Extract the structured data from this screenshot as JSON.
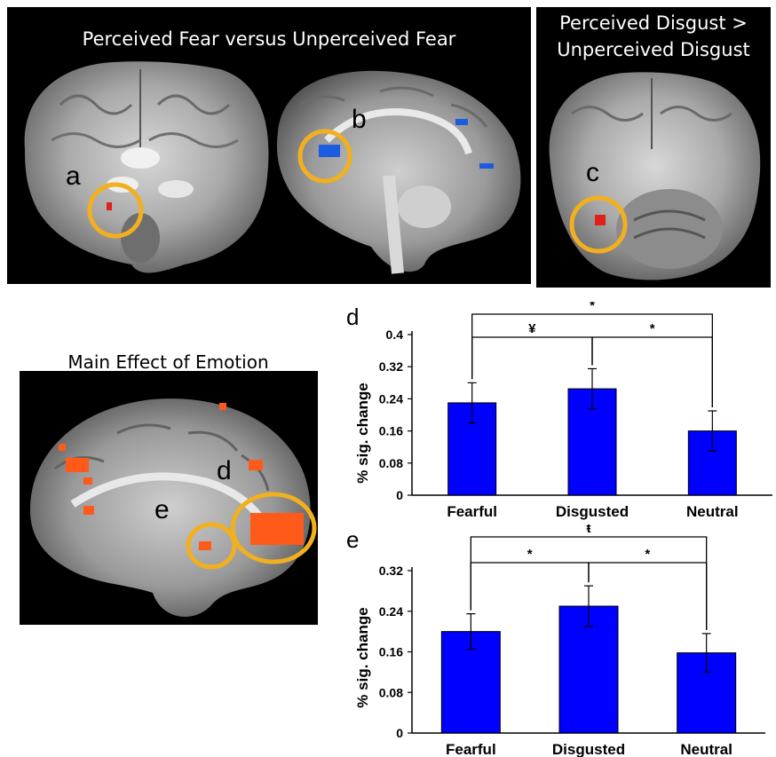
{
  "panels": {
    "top_left_title": "Perceived Fear versus Unperceived Fear",
    "top_right_title_line1": "Perceived Disgust >",
    "top_right_title_line2": "Unperceived Disgust",
    "bottom_left_title": "Main Effect of Emotion",
    "labels": {
      "a": "a",
      "b": "b",
      "c": "c",
      "d": "d",
      "e": "e"
    }
  },
  "colors": {
    "bar": "#0000ff",
    "circle": "#f2b01e",
    "activation_red": "#e0201a",
    "activation_blue": "#1d5be0",
    "activation_orange": "#ff5a1a"
  },
  "chart_data": [
    {
      "panel": "d",
      "type": "bar",
      "categories": [
        "Fearful",
        "Disgusted",
        "Neutral"
      ],
      "values": [
        0.23,
        0.265,
        0.16
      ],
      "errors": [
        0.05,
        0.05,
        0.05
      ],
      "ylabel": "% sig. change",
      "ylim": [
        0,
        0.4
      ],
      "yticks": [
        "0",
        "0.08",
        "0.16",
        "0.24",
        "0.32",
        "0.4"
      ],
      "ytick_values": [
        0,
        0.08,
        0.16,
        0.24,
        0.32,
        0.4
      ],
      "significance": [
        {
          "from": 0,
          "to": 1,
          "label": "¥"
        },
        {
          "from": 1,
          "to": 2,
          "label": "*"
        },
        {
          "from": 0,
          "to": 2,
          "label": "*"
        }
      ]
    },
    {
      "panel": "e",
      "type": "bar",
      "categories": [
        "Fearful",
        "Disgusted",
        "Neutral"
      ],
      "values": [
        0.2,
        0.25,
        0.158
      ],
      "errors": [
        0.035,
        0.04,
        0.038
      ],
      "ylabel": "% sig. change",
      "ylim": [
        0,
        0.32
      ],
      "yticks": [
        "0",
        "0.08",
        "0.16",
        "0.24",
        "0.32"
      ],
      "ytick_values": [
        0,
        0.08,
        0.16,
        0.24,
        0.32
      ],
      "significance": [
        {
          "from": 0,
          "to": 1,
          "label": "*"
        },
        {
          "from": 1,
          "to": 2,
          "label": "*"
        },
        {
          "from": 0,
          "to": 2,
          "label": "ŧ"
        }
      ]
    }
  ]
}
